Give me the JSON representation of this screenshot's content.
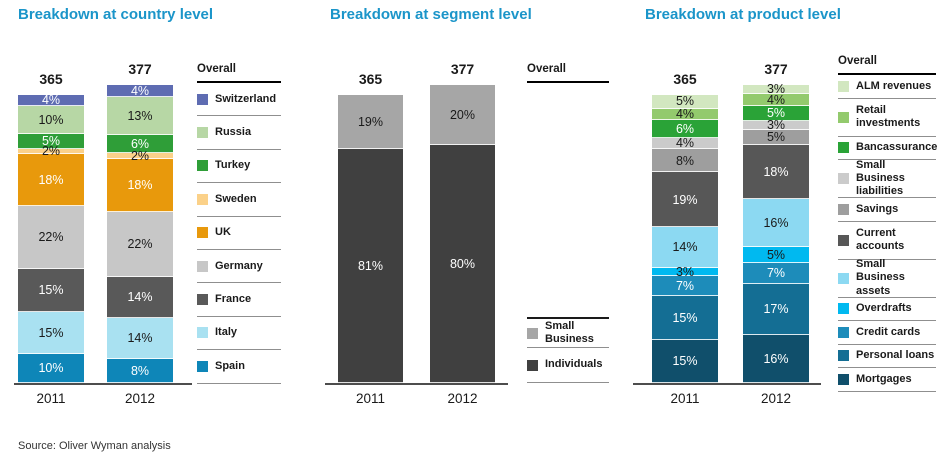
{
  "page": {
    "source": "Source: Oliver  Wyman analysis"
  },
  "chart_data": [
    {
      "type": "bar",
      "stacked": true,
      "title": "Breakdown at country level",
      "title_color": "#1b95c9",
      "legend_title": "Overall",
      "legend_position": "right",
      "categories": [
        "2011",
        "2012"
      ],
      "totals": [
        365,
        377
      ],
      "value_suffix": "%",
      "series_order": "top-to-bottom",
      "grid": false,
      "series": [
        {
          "name": "Switzerland",
          "values": [
            4,
            4
          ],
          "color": "#5e6cb2",
          "label_color": "#ffffff"
        },
        {
          "name": "Russia",
          "values": [
            10,
            13
          ],
          "color": "#b7d7a5",
          "label_color": "#1a1a1a"
        },
        {
          "name": "Turkey",
          "values": [
            5,
            6
          ],
          "color": "#2f9e38",
          "label_color": "#ffffff"
        },
        {
          "name": "Sweden",
          "values": [
            2,
            2
          ],
          "color": "#fbd189",
          "label_color": "#1a1a1a"
        },
        {
          "name": "UK",
          "values": [
            18,
            18
          ],
          "color": "#e8990c",
          "label_color": "#ffffff"
        },
        {
          "name": "Germany",
          "values": [
            22,
            22
          ],
          "color": "#c7c7c7",
          "label_color": "#1a1a1a"
        },
        {
          "name": "France",
          "values": [
            15,
            14
          ],
          "color": "#595959",
          "label_color": "#ffffff"
        },
        {
          "name": "Italy",
          "values": [
            15,
            14
          ],
          "color": "#a9e1f1",
          "label_color": "#1a1a1a"
        },
        {
          "name": "Spain",
          "values": [
            10,
            8
          ],
          "color": "#0e86b8",
          "label_color": "#ffffff"
        }
      ]
    },
    {
      "type": "bar",
      "stacked": true,
      "title": "Breakdown at segment level",
      "title_color": "#1b95c9",
      "legend_title": "Overall",
      "legend_position": "right",
      "categories": [
        "2011",
        "2012"
      ],
      "totals": [
        365,
        377
      ],
      "value_suffix": "%",
      "series_order": "top-to-bottom",
      "grid": false,
      "series": [
        {
          "name": "Small Business",
          "legend_label": "Small\nBusiness",
          "values": [
            19,
            20
          ],
          "color": "#a6a6a6",
          "label_color": "#1a1a1a"
        },
        {
          "name": "Individuals",
          "values": [
            81,
            80
          ],
          "color": "#404040",
          "label_color": "#ffffff"
        }
      ]
    },
    {
      "type": "bar",
      "stacked": true,
      "title": "Breakdown at product level",
      "title_color": "#1b95c9",
      "legend_title": "Overall",
      "legend_position": "right",
      "categories": [
        "2011",
        "2012"
      ],
      "totals": [
        365,
        377
      ],
      "value_suffix": "%",
      "series_order": "top-to-bottom",
      "grid": false,
      "series": [
        {
          "name": "ALM revenues",
          "values": [
            5,
            3
          ],
          "color": "#d2e7c0",
          "label_color": "#1a1a1a"
        },
        {
          "name": "Retail investments",
          "legend_label": "Retail\ninvestments",
          "values": [
            4,
            4
          ],
          "color": "#93ca6d",
          "label_color": "#1a1a1a"
        },
        {
          "name": "Bancassurance",
          "values": [
            6,
            5
          ],
          "color": "#2aa337",
          "label_color": "#ffffff"
        },
        {
          "name": "Small Business liabilities",
          "legend_label": "Small Business\nliabilities",
          "values": [
            4,
            3
          ],
          "color": "#cbcbcb",
          "label_color": "#1a1a1a"
        },
        {
          "name": "Savings",
          "values": [
            8,
            5
          ],
          "color": "#9e9e9e",
          "label_color": "#1a1a1a"
        },
        {
          "name": "Current accounts",
          "legend_label": "Current\naccounts",
          "values": [
            19,
            18
          ],
          "color": "#575757",
          "label_color": "#ffffff"
        },
        {
          "name": "Small Business assets",
          "legend_label": "Small Business\nassets",
          "values": [
            14,
            16
          ],
          "color": "#8cd9f2",
          "label_color": "#1a1a1a"
        },
        {
          "name": "Overdrafts",
          "values": [
            3,
            5
          ],
          "color": "#00b9f0",
          "label_color": "#1a1a1a"
        },
        {
          "name": "Credit cards",
          "values": [
            7,
            7
          ],
          "color": "#1d8cba",
          "label_color": "#ffffff"
        },
        {
          "name": "Personal loans",
          "values": [
            15,
            17
          ],
          "color": "#146e94",
          "label_color": "#ffffff"
        },
        {
          "name": "Mortgages",
          "values": [
            15,
            16
          ],
          "color": "#104f6b",
          "label_color": "#ffffff"
        }
      ]
    }
  ]
}
